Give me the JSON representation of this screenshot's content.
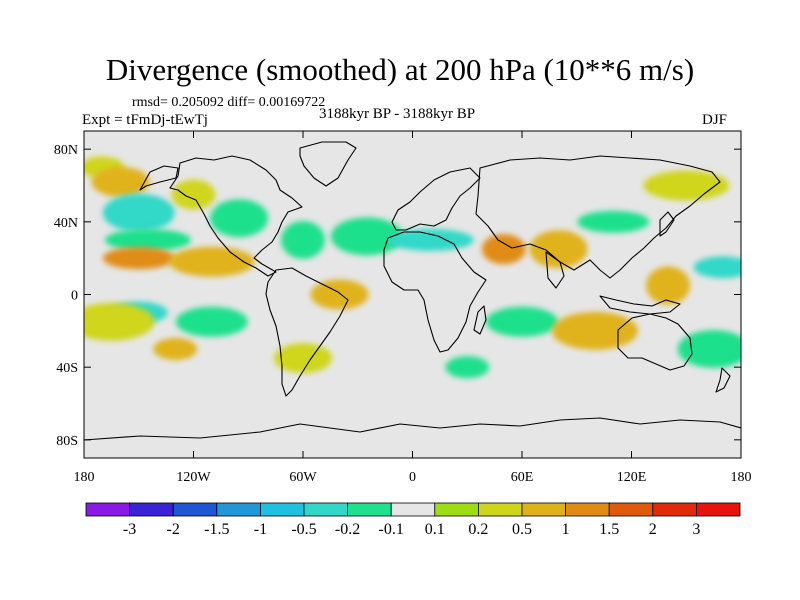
{
  "chart_data": {
    "type": "heatmap",
    "title": "Divergence (smoothed) at 200 hPa (10**6 m/s)",
    "stats": "rmsd= 0.205092 diff= 0.00169722",
    "experiment": "Expt = tFmDj-tEwTj",
    "period": "3188kyr BP - 3188kyr BP",
    "season": "DJF",
    "xlim": [
      -180,
      180
    ],
    "ylim": [
      -90,
      90
    ],
    "x_ticks": [
      {
        "value": -180,
        "label": "180"
      },
      {
        "value": -120,
        "label": "120W"
      },
      {
        "value": -60,
        "label": "60W"
      },
      {
        "value": 0,
        "label": "0"
      },
      {
        "value": 60,
        "label": "60E"
      },
      {
        "value": 120,
        "label": "120E"
      },
      {
        "value": 180,
        "label": "180"
      }
    ],
    "y_ticks": [
      {
        "value": 80,
        "label": "80N"
      },
      {
        "value": 40,
        "label": "40N"
      },
      {
        "value": 0,
        "label": "0"
      },
      {
        "value": -40,
        "label": "40S"
      },
      {
        "value": -80,
        "label": "80S"
      }
    ],
    "colorbar": {
      "levels": [
        "-3",
        "-2",
        "-1.5",
        "-1",
        "-0.5",
        "-0.2",
        "-0.1",
        "0.1",
        "0.2",
        "0.5",
        "1",
        "1.5",
        "2",
        "3"
      ],
      "colors": [
        "#8b19e6",
        "#3a23d6",
        "#1f56d4",
        "#1f97d8",
        "#1fc0e0",
        "#31d8c8",
        "#1fe08c",
        "#e6e6e6",
        "#9edc14",
        "#cfd61a",
        "#e0b21a",
        "#e08c14",
        "#e05a0c",
        "#e02a0a",
        "#e6140a"
      ]
    },
    "features": [
      {
        "lon": -170,
        "lat": 70,
        "value": 0.2
      },
      {
        "lon": -160,
        "lat": 62,
        "value": 0.5
      },
      {
        "lon": -150,
        "lat": 45,
        "value": -0.5
      },
      {
        "lon": -145,
        "lat": 30,
        "value": -0.2
      },
      {
        "lon": -120,
        "lat": 55,
        "value": 0.2
      },
      {
        "lon": -95,
        "lat": 42,
        "value": -0.2
      },
      {
        "lon": -150,
        "lat": 20,
        "value": 1.0
      },
      {
        "lon": -110,
        "lat": 18,
        "value": 0.5
      },
      {
        "lon": -60,
        "lat": 30,
        "value": -0.2
      },
      {
        "lon": -150,
        "lat": -10,
        "value": -0.5
      },
      {
        "lon": -110,
        "lat": -15,
        "value": -0.2
      },
      {
        "lon": -165,
        "lat": -15,
        "value": 0.2
      },
      {
        "lon": -130,
        "lat": -30,
        "value": 0.5
      },
      {
        "lon": -40,
        "lat": 0,
        "value": 0.5
      },
      {
        "lon": -25,
        "lat": 32,
        "value": -0.2
      },
      {
        "lon": 10,
        "lat": 30,
        "value": -0.5
      },
      {
        "lon": 50,
        "lat": 25,
        "value": 1.0
      },
      {
        "lon": 80,
        "lat": 25,
        "value": 0.5
      },
      {
        "lon": 110,
        "lat": 40,
        "value": -0.2
      },
      {
        "lon": 150,
        "lat": 60,
        "value": 0.2
      },
      {
        "lon": 140,
        "lat": 5,
        "value": 0.5
      },
      {
        "lon": 170,
        "lat": 15,
        "value": -0.5
      },
      {
        "lon": 60,
        "lat": -15,
        "value": -0.2
      },
      {
        "lon": 100,
        "lat": -20,
        "value": 0.5
      },
      {
        "lon": 30,
        "lat": -40,
        "value": -0.2
      },
      {
        "lon": -60,
        "lat": -35,
        "value": 0.2
      },
      {
        "lon": 165,
        "lat": -30,
        "value": -0.2
      }
    ]
  }
}
